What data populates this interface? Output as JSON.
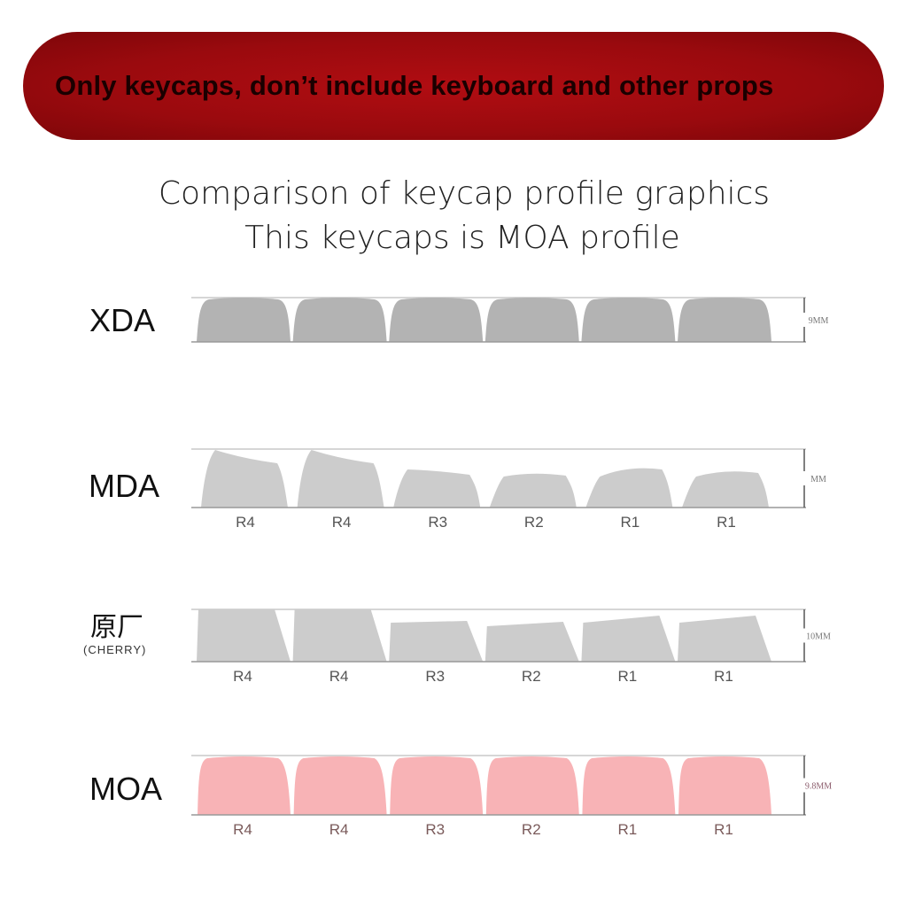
{
  "banner": {
    "text": "Only keycaps, don’t include keyboard and other props"
  },
  "title": {
    "line1": "Comparison of keycap profile graphics",
    "line2": "This keycaps is MOA profile"
  },
  "rows": [
    {
      "id": "xda",
      "label": "XDA",
      "sublabel": "",
      "height_label": "9MM",
      "keys": [
        "",
        "",
        "",
        "",
        "",
        ""
      ],
      "color": "#b3b3b3"
    },
    {
      "id": "mda",
      "label": "MDA",
      "sublabel": "",
      "height_label": "MM",
      "keys": [
        "R4",
        "R4",
        "R3",
        "R2",
        "R1",
        "R1"
      ],
      "color": "#cccccc"
    },
    {
      "id": "cherry",
      "label": "原厂",
      "sublabel": "(CHERRY)",
      "height_label": "10MM",
      "keys": [
        "R4",
        "R4",
        "R3",
        "R2",
        "R1",
        "R1"
      ],
      "color": "#cccccc"
    },
    {
      "id": "moa",
      "label": "MOA",
      "sublabel": "",
      "height_label": "9.8MM",
      "keys": [
        "R4",
        "R4",
        "R3",
        "R2",
        "R1",
        "R1"
      ],
      "color": "#f8b3b6"
    }
  ]
}
